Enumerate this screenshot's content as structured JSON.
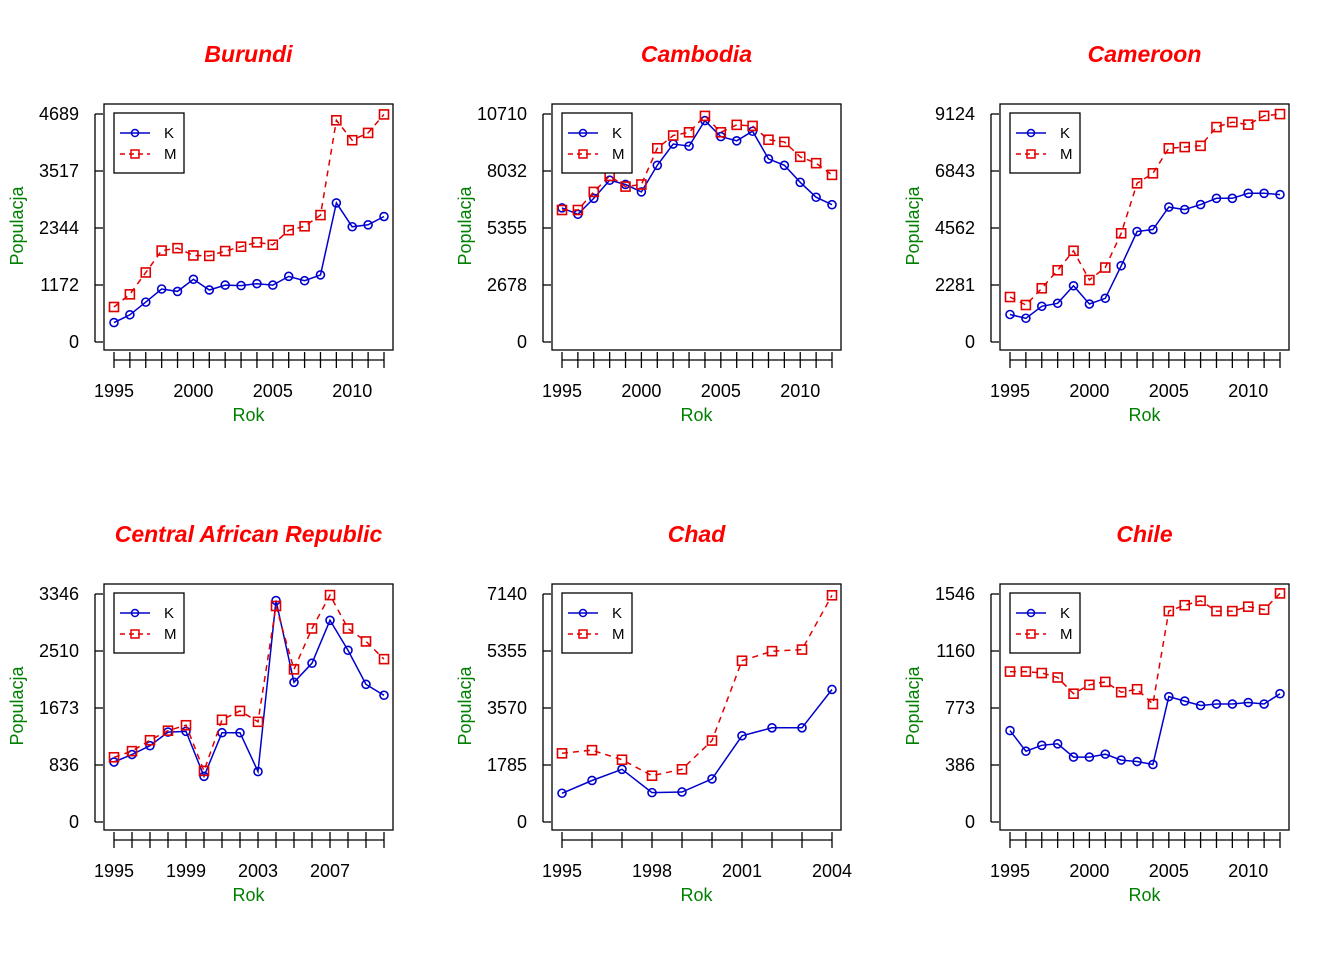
{
  "colors": {
    "title": "#ff0000",
    "axis_label": "#008000",
    "series_k": "#0000cd",
    "series_m": "#e00000"
  },
  "chart_data": [
    {
      "type": "line",
      "title": "Burundi",
      "xlabel": "Rok",
      "ylabel": "Populacja",
      "x": [
        1995,
        1996,
        1997,
        1998,
        1999,
        2000,
        2001,
        2002,
        2003,
        2004,
        2005,
        2006,
        2007,
        2008,
        2009,
        2010,
        2011,
        2012
      ],
      "xticks": [
        "1995",
        "2000",
        "2005",
        "2010"
      ],
      "yticks": [
        "0",
        "1172",
        "2344",
        "3517",
        "4689"
      ],
      "ylim": [
        0,
        4689
      ],
      "legend": [
        "K",
        "M"
      ],
      "series": [
        {
          "name": "K",
          "values": [
            400,
            560,
            820,
            1090,
            1040,
            1290,
            1070,
            1170,
            1160,
            1200,
            1170,
            1350,
            1260,
            1380,
            2860,
            2370,
            2410,
            2580
          ]
        },
        {
          "name": "M",
          "values": [
            720,
            980,
            1430,
            1880,
            1930,
            1780,
            1770,
            1870,
            1960,
            2050,
            2000,
            2300,
            2380,
            2610,
            4560,
            4150,
            4300,
            4680
          ]
        }
      ]
    },
    {
      "type": "line",
      "title": "Cambodia",
      "xlabel": "Rok",
      "ylabel": "Populacja",
      "x": [
        1995,
        1996,
        1997,
        1998,
        1999,
        2000,
        2001,
        2002,
        2003,
        2004,
        2005,
        2006,
        2007,
        2008,
        2009,
        2010,
        2011,
        2012
      ],
      "xticks": [
        "1995",
        "2000",
        "2005",
        "2010"
      ],
      "yticks": [
        "0",
        "2678",
        "5355",
        "8032",
        "10710"
      ],
      "ylim": [
        0,
        10710
      ],
      "legend": [
        "K",
        "M"
      ],
      "series": [
        {
          "name": "K",
          "values": [
            6300,
            6000,
            6750,
            7600,
            7400,
            7050,
            8300,
            9300,
            9200,
            10400,
            9650,
            9450,
            9900,
            8600,
            8300,
            7500,
            6800,
            6450
          ]
        },
        {
          "name": "M",
          "values": [
            6200,
            6200,
            7050,
            7800,
            7300,
            7400,
            9100,
            9700,
            9850,
            10620,
            9850,
            10200,
            10150,
            9500,
            9400,
            8700,
            8400,
            7850
          ]
        }
      ]
    },
    {
      "type": "line",
      "title": "Cameroon",
      "xlabel": "Rok",
      "ylabel": "Populacja",
      "x": [
        1995,
        1996,
        1997,
        1998,
        1999,
        2000,
        2001,
        2002,
        2003,
        2004,
        2005,
        2006,
        2007,
        2008,
        2009,
        2010,
        2011,
        2012
      ],
      "xticks": [
        "1995",
        "2000",
        "2005",
        "2010"
      ],
      "yticks": [
        "0",
        "2281",
        "4562",
        "6843",
        "9124"
      ],
      "ylim": [
        0,
        9124
      ],
      "legend": [
        "K",
        "M"
      ],
      "series": [
        {
          "name": "K",
          "values": [
            1100,
            950,
            1430,
            1550,
            2250,
            1520,
            1750,
            3050,
            4420,
            4500,
            5400,
            5300,
            5500,
            5750,
            5750,
            5950,
            5950,
            5900
          ]
        },
        {
          "name": "M",
          "values": [
            1800,
            1480,
            2150,
            2870,
            3650,
            2480,
            2980,
            4350,
            6350,
            6750,
            7750,
            7800,
            7850,
            8600,
            8800,
            8700,
            9050,
            9120
          ]
        }
      ]
    },
    {
      "type": "line",
      "title": "Central African Republic",
      "xlabel": "Rok",
      "ylabel": "Populacja",
      "x": [
        1995,
        1996,
        1997,
        1998,
        1999,
        2000,
        2001,
        2002,
        2003,
        2004,
        2005,
        2006,
        2007,
        2008,
        2009,
        2010
      ],
      "xticks": [
        "1995",
        "1999",
        "2003",
        "2007"
      ],
      "yticks": [
        "0",
        "836",
        "1673",
        "2510",
        "3346"
      ],
      "ylim": [
        0,
        3346
      ],
      "legend": [
        "K",
        "M"
      ],
      "series": [
        {
          "name": "K",
          "values": [
            880,
            990,
            1120,
            1320,
            1330,
            670,
            1310,
            1310,
            740,
            3250,
            2050,
            2330,
            2960,
            2520,
            2020,
            1860
          ]
        },
        {
          "name": "M",
          "values": [
            950,
            1040,
            1200,
            1340,
            1420,
            750,
            1500,
            1630,
            1470,
            3170,
            2240,
            2840,
            3330,
            2840,
            2650,
            2390
          ]
        }
      ]
    },
    {
      "type": "line",
      "title": "Chad",
      "xlabel": "Rok",
      "ylabel": "Populacja",
      "x": [
        1995,
        1996,
        1997,
        1998,
        1999,
        2000,
        2001,
        2002,
        2003,
        2004
      ],
      "xticks": [
        "1995",
        "1998",
        "2001",
        "2004"
      ],
      "yticks": [
        "0",
        "1785",
        "3570",
        "5355",
        "7140"
      ],
      "ylim": [
        0,
        7140
      ],
      "legend": [
        "K",
        "M"
      ],
      "series": [
        {
          "name": "K",
          "values": [
            900,
            1300,
            1650,
            920,
            940,
            1350,
            2700,
            2950,
            2950,
            4150
          ]
        },
        {
          "name": "M",
          "values": [
            2150,
            2250,
            1950,
            1450,
            1650,
            2550,
            5050,
            5350,
            5400,
            7100
          ]
        }
      ]
    },
    {
      "type": "line",
      "title": "Chile",
      "xlabel": "Rok",
      "ylabel": "Populacja",
      "x": [
        1995,
        1996,
        1997,
        1998,
        1999,
        2000,
        2001,
        2002,
        2003,
        2004,
        2005,
        2006,
        2007,
        2008,
        2009,
        2010,
        2011,
        2012
      ],
      "xticks": [
        "1995",
        "2000",
        "2005",
        "2010"
      ],
      "yticks": [
        "0",
        "386",
        "773",
        "1160",
        "1546"
      ],
      "ylim": [
        0,
        1546
      ],
      "legend": [
        "K",
        "M"
      ],
      "series": [
        {
          "name": "K",
          "values": [
            620,
            480,
            520,
            530,
            440,
            440,
            460,
            420,
            410,
            390,
            850,
            820,
            790,
            800,
            800,
            810,
            800,
            870
          ]
        },
        {
          "name": "M",
          "values": [
            1020,
            1020,
            1010,
            980,
            870,
            930,
            950,
            880,
            900,
            800,
            1430,
            1470,
            1500,
            1430,
            1430,
            1460,
            1440,
            1550
          ]
        }
      ]
    }
  ]
}
